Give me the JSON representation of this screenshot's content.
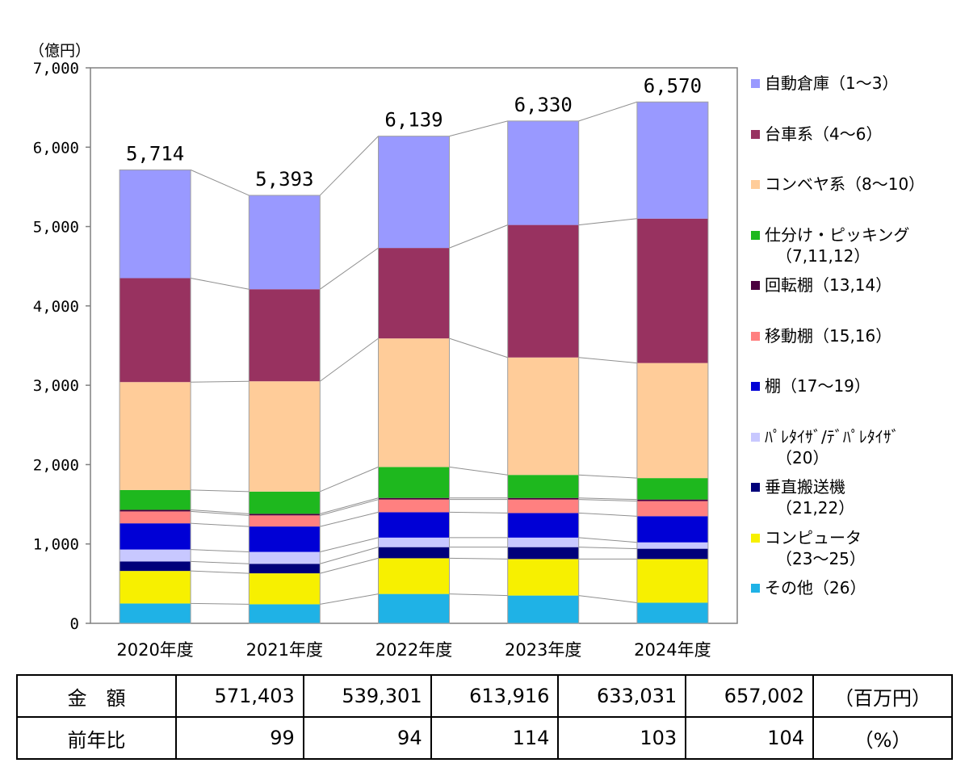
{
  "chart_data": {
    "type": "bar",
    "stacked": true,
    "unit_label": "（億円）",
    "categories": [
      "2020年度",
      "2021年度",
      "2022年度",
      "2023年度",
      "2024年度"
    ],
    "totals": [
      5714,
      5393,
      6139,
      6330,
      6570
    ],
    "total_labels": [
      "5,714",
      "5,393",
      "6,139",
      "6,330",
      "6,570"
    ],
    "y_ticks": [
      "0",
      "1,000",
      "2,000",
      "3,000",
      "4,000",
      "5,000",
      "6,000",
      "7,000"
    ],
    "ylim": [
      0,
      7000
    ],
    "legend_position": "right",
    "series": [
      {
        "name": "その他（26）",
        "color": "#1fb2e6",
        "values": [
          250,
          240,
          370,
          350,
          260
        ]
      },
      {
        "name": "コンピュータ（23～25）",
        "color": "#f7f000",
        "values": [
          410,
          390,
          450,
          460,
          550
        ]
      },
      {
        "name": "垂直搬送機（21,22）",
        "color": "#00007a",
        "values": [
          120,
          120,
          140,
          150,
          130
        ]
      },
      {
        "name": "ﾊﾟﾚﾀｲｻﾞ/ﾃﾞﾊﾟﾚﾀｲｻﾞ（20）",
        "color": "#c8c8ff",
        "values": [
          150,
          150,
          120,
          120,
          80
        ]
      },
      {
        "name": "棚（17～19）",
        "color": "#0000d6",
        "values": [
          330,
          320,
          320,
          310,
          330
        ]
      },
      {
        "name": "移動棚（15,16）",
        "color": "#ff8080",
        "values": [
          150,
          140,
          160,
          170,
          190
        ]
      },
      {
        "name": "回転棚（13,14）",
        "color": "#4b0040",
        "values": [
          20,
          20,
          20,
          20,
          20
        ]
      },
      {
        "name": "仕分け・ピッキング（7,11,12）",
        "color": "#1eb81e",
        "values": [
          250,
          280,
          390,
          290,
          270
        ]
      },
      {
        "name": "コンベヤ系（8～10）",
        "color": "#ffcc99",
        "values": [
          1360,
          1390,
          1620,
          1480,
          1450
        ]
      },
      {
        "name": "台車系（4～6）",
        "color": "#983260",
        "values": [
          1310,
          1160,
          1140,
          1670,
          1820
        ]
      },
      {
        "name": "自動倉庫（1～3）",
        "color": "#9999ff",
        "values": [
          1364,
          1183,
          1409,
          1310,
          1470
        ]
      }
    ]
  },
  "legend": [
    {
      "line1": "自動倉庫（1～3）",
      "line2": "",
      "color": "#9999ff"
    },
    {
      "line1": "台車系（4～6）",
      "line2": "",
      "color": "#983260"
    },
    {
      "line1": "コンベヤ系（8～10）",
      "line2": "",
      "color": "#ffcc99"
    },
    {
      "line1": "仕分け・ピッキング",
      "line2": "（7,11,12）",
      "color": "#1eb81e"
    },
    {
      "line1": "回転棚（13,14）",
      "line2": "",
      "color": "#4b0040"
    },
    {
      "line1": "移動棚（15,16）",
      "line2": "",
      "color": "#ff8080"
    },
    {
      "line1": "棚（17～19）",
      "line2": "",
      "color": "#0000d6"
    },
    {
      "line1": "ﾊﾟﾚﾀｲｻﾞ/ﾃﾞﾊﾟﾚﾀｲｻﾞ",
      "line2": "（20）",
      "color": "#c8c8ff"
    },
    {
      "line1": "垂直搬送機",
      "line2": "（21,22）",
      "color": "#00007a"
    },
    {
      "line1": "コンピュータ",
      "line2": "（23～25）",
      "color": "#f7f000"
    },
    {
      "line1": "その他（26）",
      "line2": "",
      "color": "#1fb2e6"
    }
  ],
  "table": {
    "rows": [
      {
        "label": "金　額",
        "values": [
          "571,403",
          "539,301",
          "613,916",
          "633,031",
          "657,002"
        ],
        "unit": "（百万円）"
      },
      {
        "label": "前年比",
        "values": [
          "99",
          "94",
          "114",
          "103",
          "104"
        ],
        "unit": "（%）"
      }
    ]
  }
}
